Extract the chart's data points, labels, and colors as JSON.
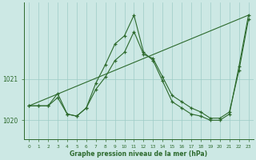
{
  "line1_x": [
    0,
    1,
    2,
    3,
    4,
    5,
    6,
    7,
    8,
    9,
    10,
    11,
    12,
    13,
    14,
    15,
    16,
    17,
    18,
    19,
    20,
    21,
    22,
    23
  ],
  "line1_y": [
    1020.35,
    1020.35,
    1020.35,
    1020.55,
    1020.15,
    1020.1,
    1020.3,
    1020.75,
    1021.05,
    1021.45,
    1021.65,
    1022.15,
    1021.6,
    1021.5,
    1021.05,
    1020.6,
    1020.45,
    1020.3,
    1020.2,
    1020.05,
    1020.05,
    1020.2,
    1021.2,
    1022.45
  ],
  "line2_x": [
    0,
    1,
    2,
    3,
    4,
    5,
    6,
    7,
    8,
    9,
    10,
    11,
    12,
    13,
    14,
    15,
    16,
    17,
    18,
    19,
    20,
    21,
    22,
    23
  ],
  "line2_y": [
    1020.35,
    1020.35,
    1020.35,
    1020.65,
    1020.15,
    1020.1,
    1020.3,
    1020.9,
    1021.35,
    1021.85,
    1022.05,
    1022.55,
    1021.65,
    1021.45,
    1020.95,
    1020.45,
    1020.3,
    1020.15,
    1020.1,
    1020.0,
    1020.0,
    1020.15,
    1021.3,
    1022.55
  ],
  "line3_x": [
    0,
    23
  ],
  "line3_y": [
    1020.35,
    1022.55
  ],
  "line_color": "#2d6a2d",
  "bg_color": "#cce8e4",
  "grid_color": "#9eccc7",
  "xlabel": "Graphe pression niveau de la mer (hPa)",
  "ylim": [
    1019.55,
    1022.85
  ],
  "xlim": [
    -0.5,
    23.5
  ],
  "yticks": [
    1020,
    1021
  ],
  "xticks": [
    0,
    1,
    2,
    3,
    4,
    5,
    6,
    7,
    8,
    9,
    10,
    11,
    12,
    13,
    14,
    15,
    16,
    17,
    18,
    19,
    20,
    21,
    22,
    23
  ],
  "ytick_fontsize": 5.5,
  "xtick_fontsize": 4.2,
  "xlabel_fontsize": 5.5,
  "lw": 0.8,
  "marker_size": 3.0
}
